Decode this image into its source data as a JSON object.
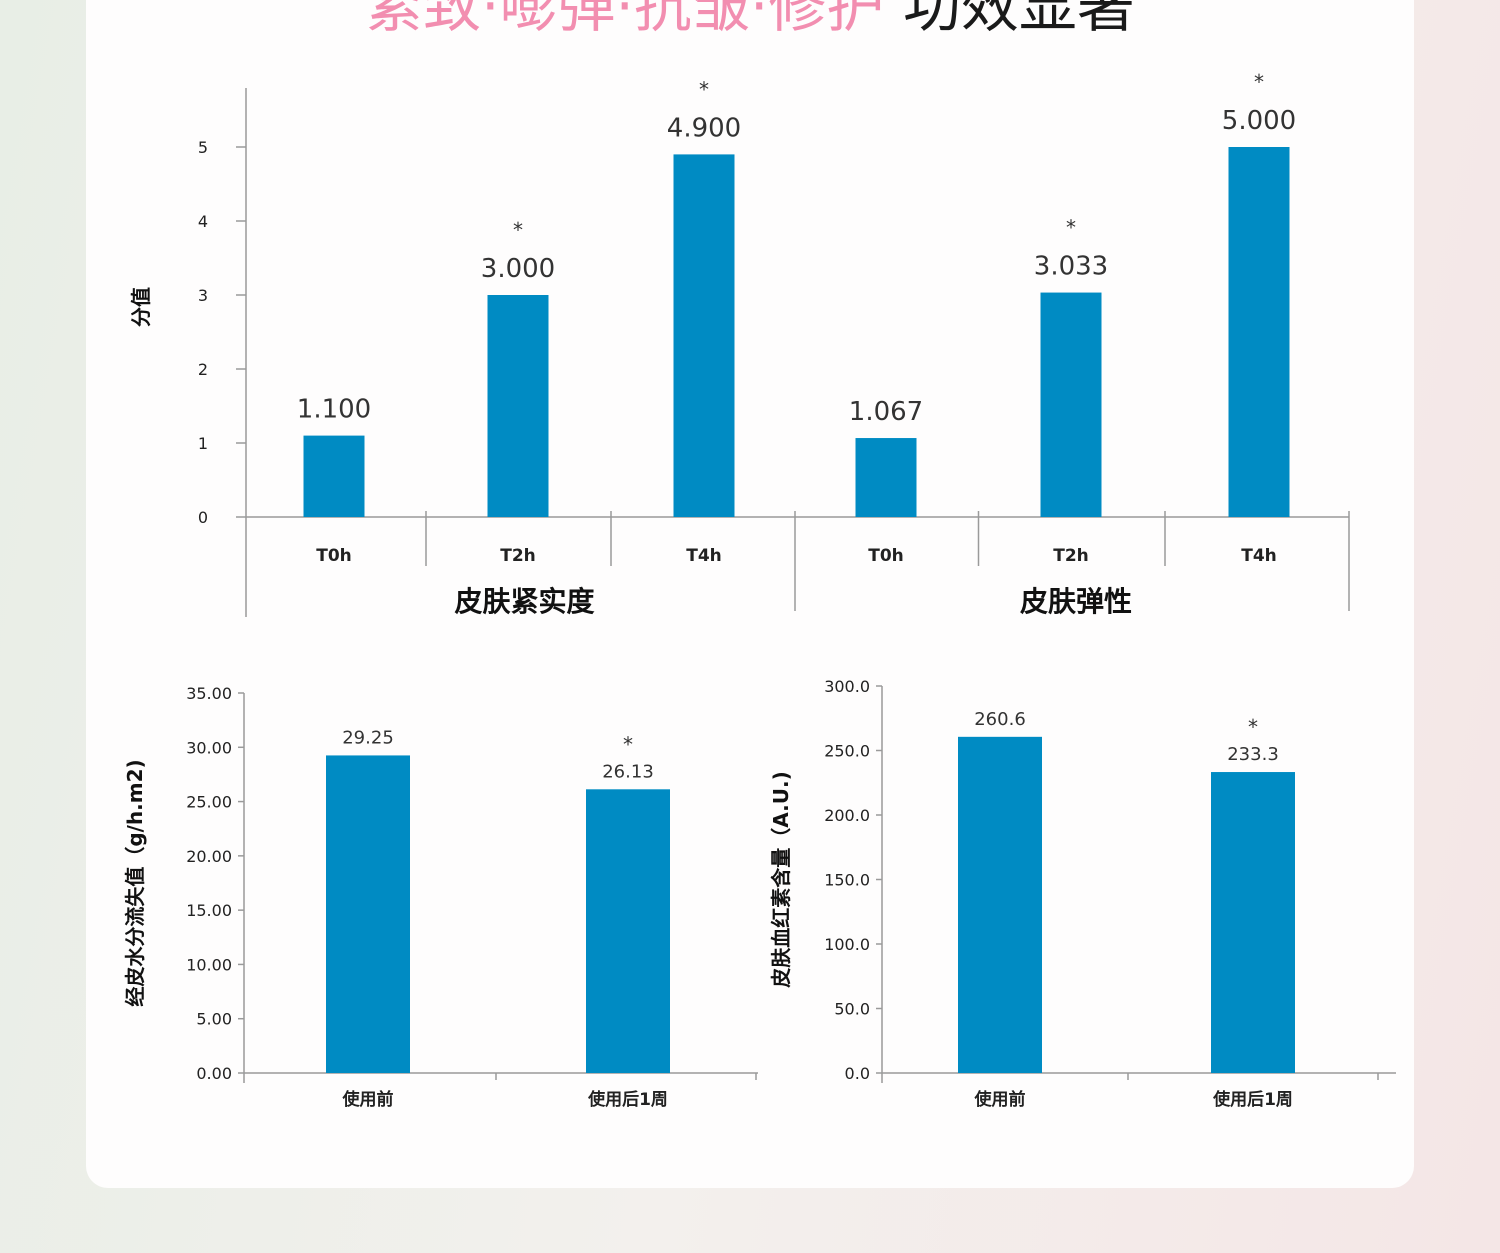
{
  "headline": {
    "pink": "紧致·嘭弹·抗皱·修护",
    "dark": "功效显著"
  },
  "colors": {
    "bar": "#008bc3",
    "axis": "#9a9a9a"
  },
  "chart_data": [
    {
      "type": "bar",
      "ylabel": "分值",
      "ylim": [
        0,
        5
      ],
      "yticks": [
        "0",
        "1",
        "2",
        "3",
        "4",
        "5"
      ],
      "groups": [
        {
          "name": "皮肤紧实度",
          "categories": [
            "T0h",
            "T2h",
            "T4h"
          ],
          "values": [
            1.1,
            3.0,
            4.9
          ],
          "labels": [
            "1.100",
            "3.000",
            "4.900"
          ],
          "significance": [
            "",
            "*",
            "*"
          ]
        },
        {
          "name": "皮肤弹性",
          "categories": [
            "T0h",
            "T2h",
            "T4h"
          ],
          "values": [
            1.067,
            3.033,
            5.0
          ],
          "labels": [
            "1.067",
            "3.033",
            "5.000"
          ],
          "significance": [
            "",
            "*",
            "*"
          ]
        }
      ]
    },
    {
      "type": "bar",
      "ylabel": "经皮水分流失值（g/h.m2)",
      "ylim": [
        0,
        35
      ],
      "yticks": [
        "0.00",
        "5.00",
        "10.00",
        "15.00",
        "20.00",
        "25.00",
        "30.00",
        "35.00"
      ],
      "categories": [
        "使用前",
        "使用后1周"
      ],
      "values": [
        29.25,
        26.13
      ],
      "labels": [
        "29.25",
        "26.13"
      ],
      "significance": [
        "",
        "*"
      ]
    },
    {
      "type": "bar",
      "ylabel": "皮肤血红素含量（A.U.)",
      "ylim": [
        0,
        300
      ],
      "yticks": [
        "0.0",
        "50.0",
        "100.0",
        "150.0",
        "200.0",
        "250.0",
        "300.0"
      ],
      "categories": [
        "使用前",
        "使用后1周"
      ],
      "values": [
        260.6,
        233.3
      ],
      "labels": [
        "260.6",
        "233.3"
      ],
      "significance": [
        "",
        "*"
      ]
    }
  ]
}
